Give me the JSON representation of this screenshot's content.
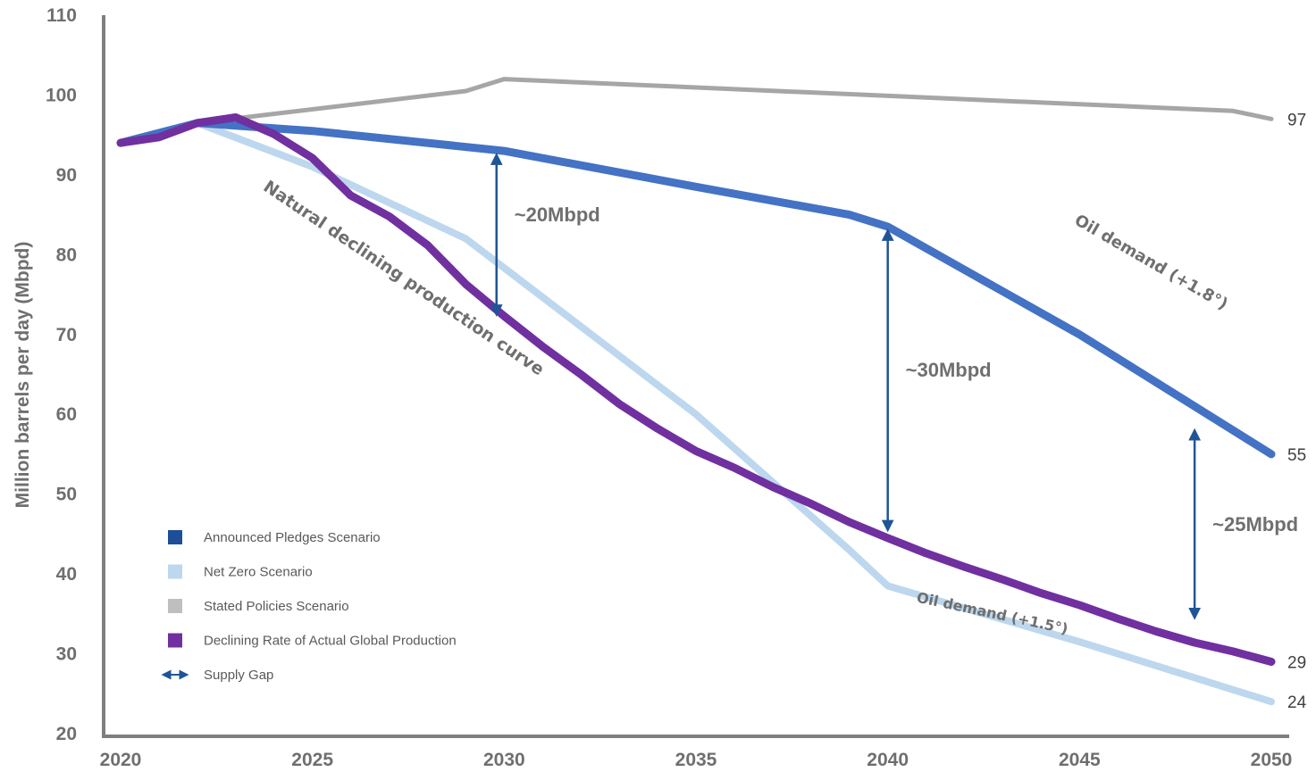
{
  "chart_data": {
    "type": "line",
    "title": "",
    "xlabel": "",
    "ylabel": "Million barrels per day (Mbpd)",
    "xlim": [
      2020,
      2050
    ],
    "ylim": [
      20,
      110
    ],
    "x_ticks": [
      "2020",
      "2025",
      "2030",
      "2035",
      "2040",
      "2045",
      "2050"
    ],
    "y_ticks": [
      "20",
      "30",
      "40",
      "50",
      "60",
      "70",
      "80",
      "90",
      "100",
      "110"
    ],
    "grid": false,
    "legend_position": "bottom-left",
    "series": [
      {
        "name": "Stated Policies Scenario",
        "color": "#a6a6a6",
        "x": [
          2020,
          2022,
          2029,
          2030,
          2049,
          2050
        ],
        "y": [
          94,
          96.5,
          100.5,
          102,
          98,
          97
        ]
      },
      {
        "name": "Net Zero Scenario",
        "color": "#bdd7ee",
        "x": [
          2020,
          2022,
          2025,
          2029,
          2035,
          2039,
          2040,
          2045,
          2050
        ],
        "y": [
          94,
          96.5,
          91,
          82,
          60,
          43,
          38.5,
          31.5,
          24
        ]
      },
      {
        "name": "Announced Pledges Scenario",
        "color": "#4472c4",
        "x": [
          2020,
          2022,
          2025,
          2030,
          2035,
          2039,
          2040,
          2045,
          2050
        ],
        "y": [
          94,
          96.5,
          95.5,
          93,
          88.5,
          85,
          83.5,
          70,
          55
        ]
      },
      {
        "name": "Declining Rate of Actual Global Production",
        "color": "#7030a0",
        "x": [
          2020,
          2021,
          2022,
          2023,
          2024,
          2025,
          2026,
          2027,
          2028,
          2029,
          2030,
          2031,
          2032,
          2033,
          2034,
          2035,
          2036,
          2037,
          2038,
          2039,
          2040,
          2041,
          2042,
          2043,
          2044,
          2045,
          2046,
          2047,
          2048,
          2049,
          2050
        ],
        "y": [
          94,
          94.7,
          96.5,
          97.2,
          95.1,
          92.1,
          87.4,
          84.8,
          81.2,
          76.3,
          72.3,
          68.5,
          65,
          61.3,
          58.2,
          55.4,
          53.3,
          50.9,
          48.8,
          46.5,
          44.5,
          42.6,
          40.9,
          39.3,
          37.6,
          36.1,
          34.4,
          32.8,
          31.4,
          30.3,
          29
        ]
      }
    ],
    "end_labels": [
      {
        "text": "97",
        "x": 2050,
        "y": 97
      },
      {
        "text": "55",
        "x": 2050,
        "y": 55
      },
      {
        "text": "29",
        "x": 2050,
        "y": 29
      },
      {
        "text": "24",
        "x": 2050,
        "y": 24
      }
    ],
    "supply_gaps": [
      {
        "label": "~20Mbpd",
        "x": 2029.8,
        "y_top": 92,
        "y_bottom": 73
      },
      {
        "label": "~30Mbpd",
        "x": 2040,
        "y_top": 82.5,
        "y_bottom": 46
      },
      {
        "label": "~25Mbpd",
        "x": 2048,
        "y_top": 57.5,
        "y_bottom": 35
      }
    ],
    "annotations": [
      {
        "text": "Natural declining production curve",
        "x": 2027.3,
        "y": 76.5,
        "angle": 34
      },
      {
        "text": "Oil demand (+1.8°)",
        "x": 2046.8,
        "y": 78.5,
        "angle": 30
      },
      {
        "text": "Oil demand (+1.5°)",
        "x": 2042.7,
        "y": 34.5,
        "angle": 12
      }
    ],
    "legend": [
      {
        "label": "Announced Pledges Scenario",
        "color": "#1f4e99",
        "marker": "square"
      },
      {
        "label": "Net Zero Scenario",
        "color": "#bdd7ee",
        "marker": "square"
      },
      {
        "label": "Stated Policies Scenario",
        "color": "#bfbfbf",
        "marker": "square"
      },
      {
        "label": "Declining Rate of Actual Global Production",
        "color": "#7030a0",
        "marker": "square"
      },
      {
        "label": "Supply Gap",
        "color": "#1f5596",
        "marker": "double-arrow"
      }
    ],
    "arrow_color": "#1f5596",
    "axis_color": "#7f7f7f"
  }
}
